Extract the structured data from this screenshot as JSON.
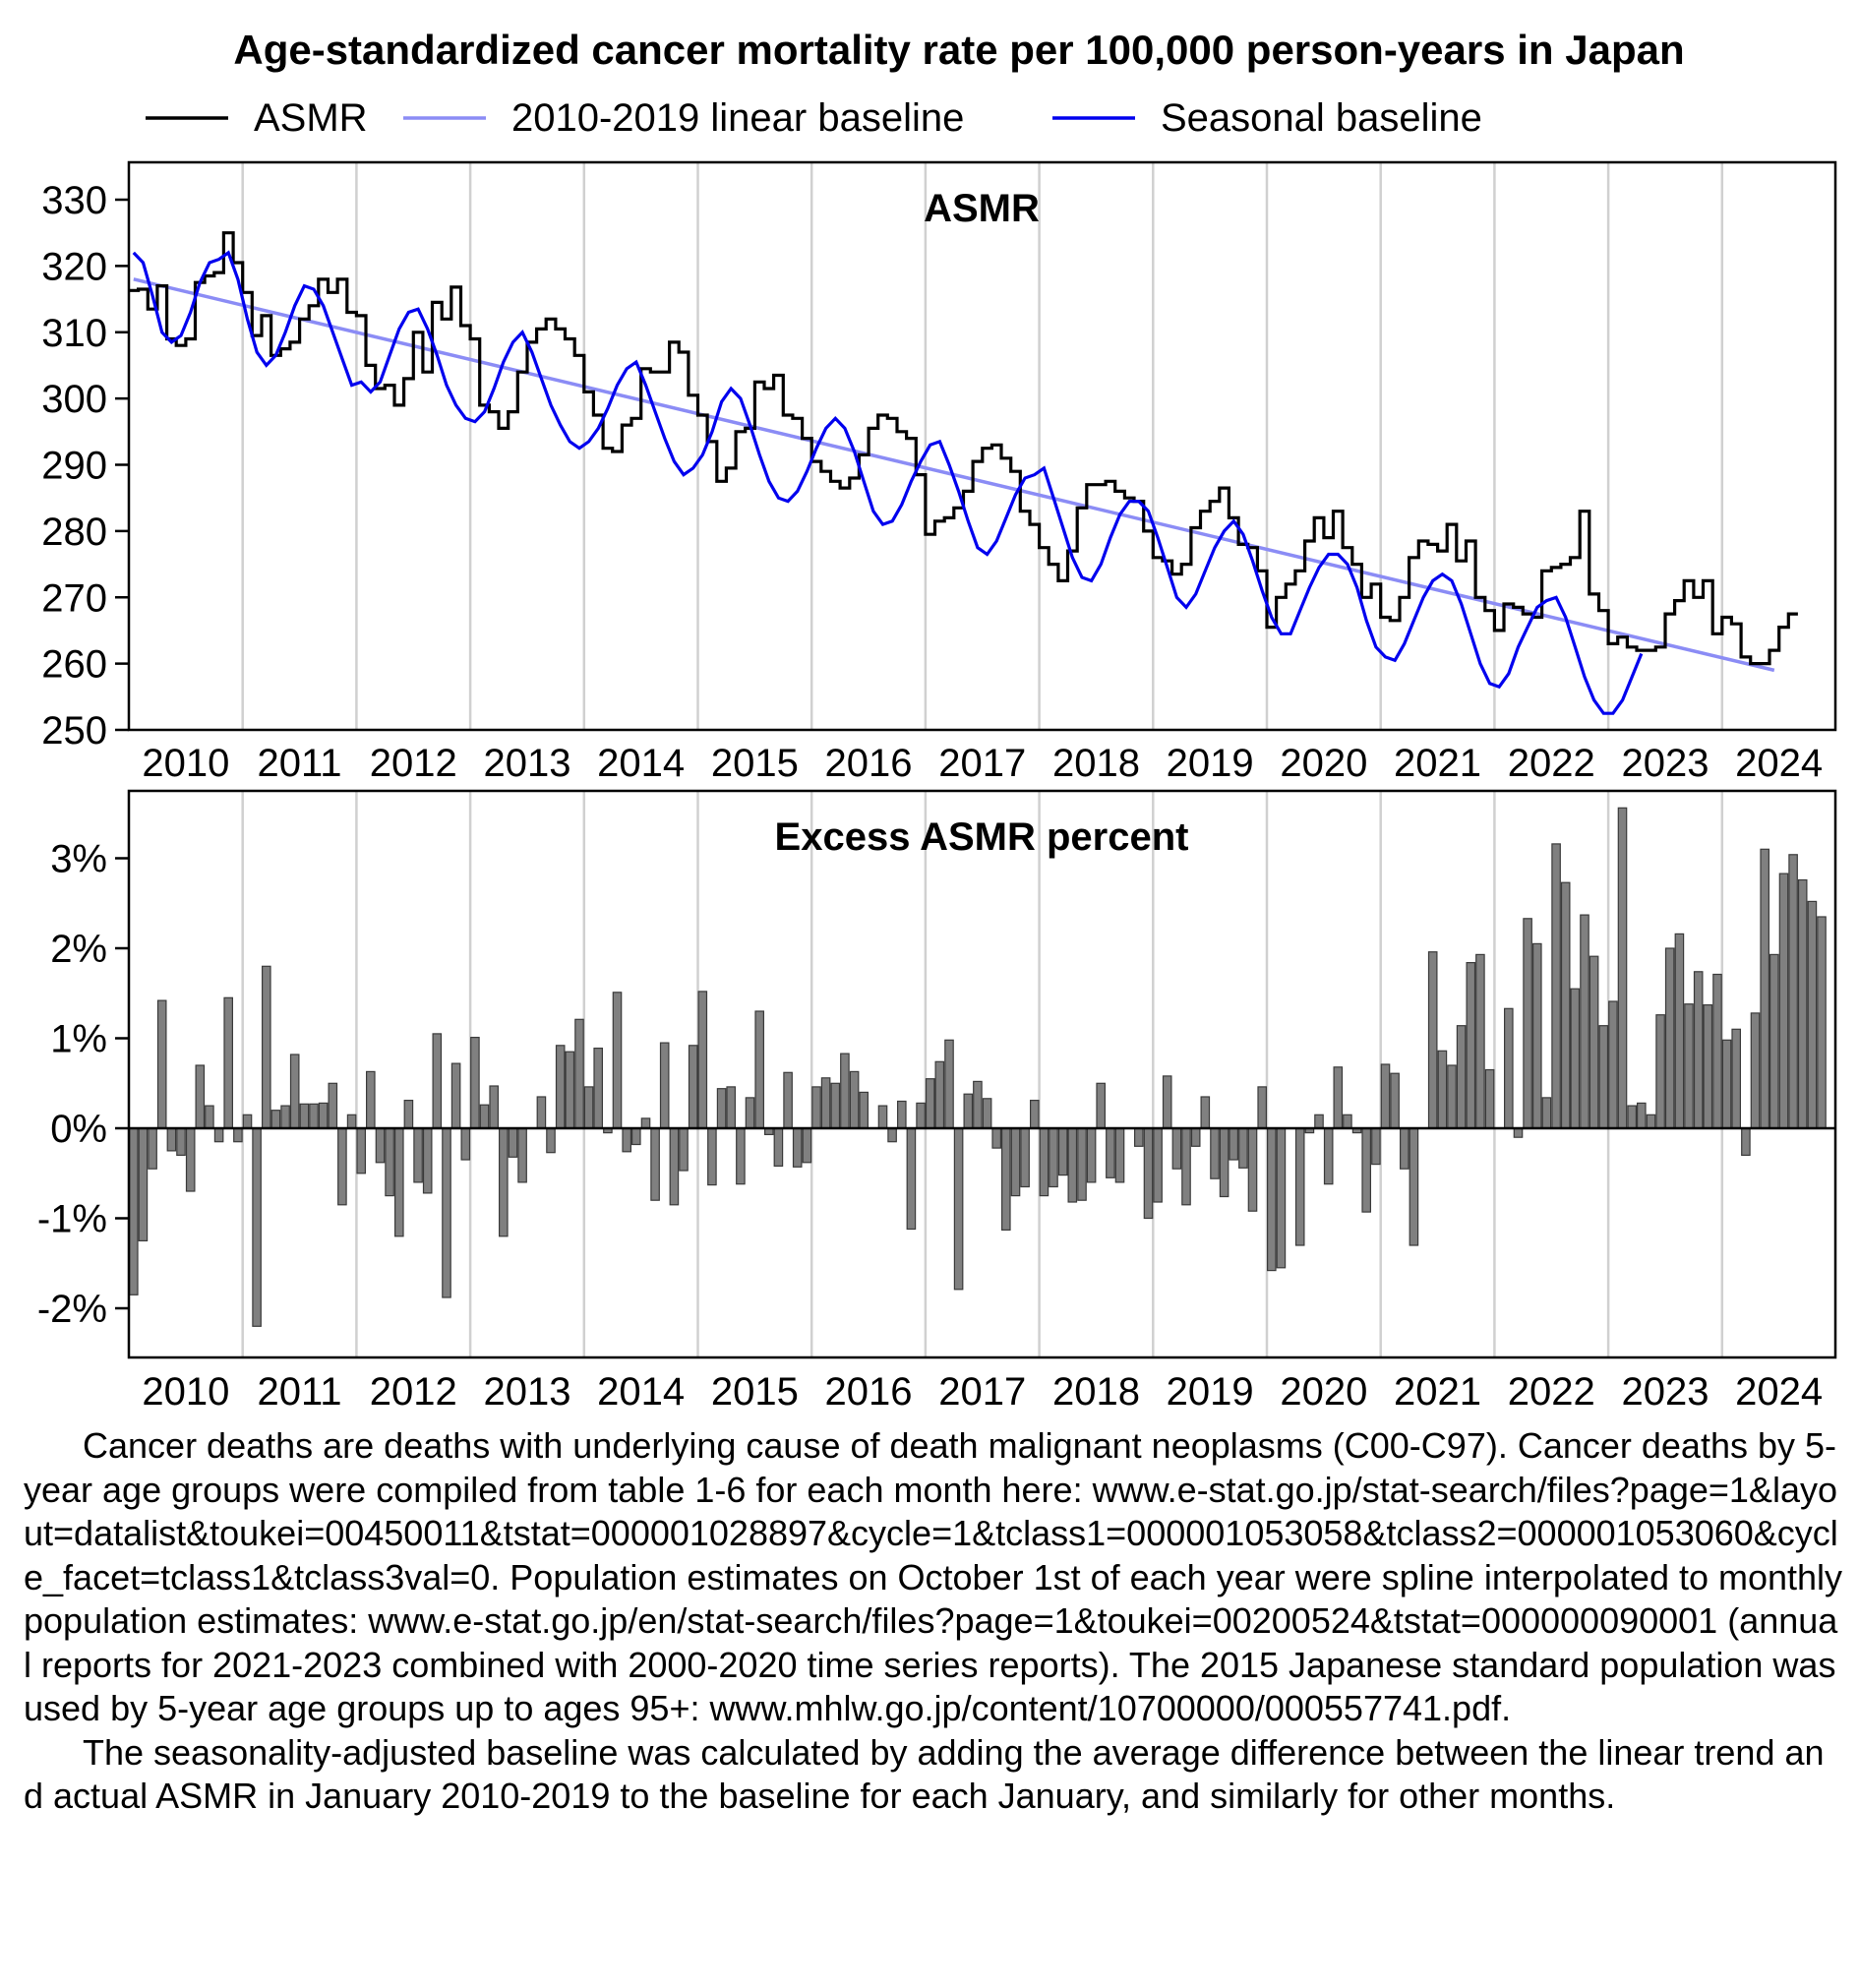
{
  "figure": {
    "title": "Age-standardized cancer mortality rate per 100,000 person-years in Japan",
    "legend": [
      {
        "name": "ASMR",
        "color": "#000000"
      },
      {
        "name": "2010-2019 linear baseline",
        "color": "#8b8cf5"
      },
      {
        "name": "Seasonal baseline",
        "color": "#0000ee"
      }
    ],
    "notes": [
      "Cancer deaths are deaths with underlying cause of death malignant neoplasms (C00-C97). Cancer deaths by 5-year age groups were compiled from table 1-6 for each month here: www.e-stat.go.jp/stat-search/files?page=1&layout=datalist&toukei=00450011&tstat=000001028897&cycle=1&tclass1=000001053058&tclass2=000001053060&cycle_facet=tclass1&tclass3val=0. Population estimates on October 1st of each year were spline interpolated to monthly population estimates: www.e-stat.go.jp/en/stat-search/files?page=1&toukei=00200524&tstat=000000090001 (annual reports for 2021-2023 combined with 2000-2020 time series reports). The 2015 Japanese standard population was used by 5-year age groups up to ages 95+: www.mhlw.go.jp/content/10700000/000557741.pdf.",
      "The seasonality-adjusted baseline was calculated by adding the average difference between the linear trend and actual ASMR in January 2010-2019 to the baseline for each January, and similarly for other months."
    ]
  },
  "chart_data": [
    {
      "type": "line",
      "title": "ASMR",
      "x_start": "2010-01",
      "x_end": "2024-06",
      "x_ticks": [
        "2010",
        "2011",
        "2012",
        "2013",
        "2014",
        "2015",
        "2016",
        "2017",
        "2018",
        "2019",
        "2020",
        "2021",
        "2022",
        "2023",
        "2024"
      ],
      "ylim": [
        250,
        335
      ],
      "y_ticks": [
        250,
        260,
        270,
        280,
        290,
        300,
        310,
        320,
        330
      ],
      "grid": "vertical lines at year starts",
      "series": [
        {
          "name": "ASMR",
          "style": "step",
          "color": "#000000",
          "values": [
            316.3,
            316.5,
            313.5,
            317.0,
            309.0,
            308.0,
            309.0,
            317.5,
            318.5,
            319.0,
            325.0,
            320.5,
            316.0,
            309.5,
            312.5,
            306.5,
            307.5,
            308.5,
            312.0,
            314.0,
            318.0,
            316.0,
            318.0,
            313.0,
            312.5,
            305.0,
            301.5,
            302.0,
            299.0,
            303.0,
            310.0,
            304.0,
            314.5,
            312.0,
            316.8,
            311.0,
            309.0,
            299.0,
            298.0,
            295.5,
            298.0,
            304.0,
            308.5,
            310.5,
            312.0,
            310.5,
            309.0,
            306.5,
            301.0,
            297.5,
            292.5,
            292.0,
            296.0,
            297.0,
            304.5,
            304.0,
            304.0,
            308.5,
            307.0,
            300.5,
            297.5,
            293.5,
            287.5,
            289.5,
            295.0,
            295.5,
            302.5,
            301.5,
            303.5,
            297.5,
            297.0,
            294.0,
            290.5,
            289.0,
            287.5,
            286.5,
            288.0,
            291.5,
            295.5,
            297.5,
            297.0,
            295.0,
            294.0,
            288.5,
            279.5,
            281.5,
            282.0,
            283.5,
            286.0,
            290.5,
            292.5,
            293.0,
            291.0,
            289.0,
            283.0,
            281.0,
            277.5,
            275.0,
            272.5,
            277.0,
            283.5,
            287.0,
            287.0,
            287.5,
            286.0,
            285.0,
            284.5,
            280.0,
            276.0,
            275.5,
            273.5,
            275.0,
            280.5,
            283.0,
            284.5,
            286.5,
            282.0,
            278.0,
            277.5,
            274.0,
            265.5,
            270.0,
            272.0,
            274.0,
            278.5,
            282.0,
            279.0,
            283.0,
            277.5,
            275.0,
            270.0,
            272.0,
            267.0,
            266.5,
            270.0,
            276.0,
            278.5,
            278.0,
            277.0,
            281.0,
            275.5,
            278.5,
            270.0,
            268.0,
            265.0,
            269.0,
            268.5,
            267.5,
            267.0,
            274.0,
            274.5,
            275.0,
            276.0,
            283.0,
            270.5,
            268.0,
            263.0,
            264.0,
            262.5,
            262.0,
            262.0,
            262.5,
            267.5,
            269.5,
            272.5,
            270.0,
            272.5,
            264.5,
            267.0,
            266.0,
            261.0,
            260.0,
            260.0,
            262.0,
            265.5,
            267.5
          ]
        },
        {
          "name": "2010-2019 linear baseline",
          "style": "line",
          "color": "#8b8cf5",
          "start_value": 318.0,
          "end_value": 259.0
        },
        {
          "name": "Seasonal baseline",
          "style": "line",
          "color": "#0000ee",
          "values": [
            322.0,
            320.5,
            315.5,
            310.0,
            308.5,
            309.5,
            313.0,
            317.5,
            320.5,
            321.0,
            322.0,
            318.0,
            312.0,
            307.0,
            305.0,
            306.5,
            310.0,
            314.0,
            317.0,
            316.5,
            314.0,
            310.0,
            306.0,
            302.0,
            302.5,
            301.0,
            302.5,
            306.5,
            310.5,
            313.0,
            313.5,
            310.5,
            306.5,
            302.0,
            299.0,
            297.0,
            296.5,
            298.0,
            301.5,
            305.5,
            308.5,
            310.0,
            307.0,
            303.0,
            299.0,
            296.0,
            293.5,
            292.5,
            293.5,
            295.5,
            298.5,
            302.0,
            304.5,
            305.5,
            302.0,
            298.0,
            294.0,
            290.5,
            288.5,
            289.5,
            291.5,
            295.0,
            299.5,
            301.5,
            300.0,
            296.0,
            291.5,
            287.5,
            285.0,
            284.5,
            286.0,
            289.0,
            292.5,
            295.5,
            297.0,
            295.5,
            292.0,
            287.5,
            283.0,
            281.0,
            281.5,
            284.0,
            287.5,
            290.5,
            293.0,
            293.5,
            290.0,
            286.0,
            281.5,
            277.5,
            276.5,
            278.5,
            282.0,
            285.5,
            288.0,
            288.5,
            289.5,
            285.0,
            280.5,
            276.0,
            273.0,
            272.5,
            275.0,
            279.0,
            282.5,
            284.5,
            284.5,
            283.0,
            279.0,
            274.5,
            270.0,
            268.5,
            270.5,
            274.0,
            277.5,
            280.0,
            281.5,
            279.5,
            275.5,
            271.0,
            267.0,
            264.5,
            264.5,
            268.0,
            271.5,
            274.5,
            276.5,
            276.5,
            275.0,
            271.5,
            266.5,
            262.5,
            261.0,
            260.5,
            263.0,
            266.5,
            270.0,
            272.5,
            273.5,
            272.5,
            269.0,
            264.5,
            260.0,
            257.0,
            256.5,
            258.5,
            262.5,
            265.5,
            268.5,
            269.5,
            270.0,
            267.0,
            262.5,
            258.0,
            254.5,
            252.5,
            252.5,
            254.5,
            258.0,
            261.5
          ]
        }
      ]
    },
    {
      "type": "bar",
      "title": "Excess ASMR percent",
      "x_start": "2010-01",
      "x_end": "2024-06",
      "x_ticks": [
        "2010",
        "2011",
        "2012",
        "2013",
        "2014",
        "2015",
        "2016",
        "2017",
        "2018",
        "2019",
        "2020",
        "2021",
        "2022",
        "2023",
        "2024"
      ],
      "ylim": [
        -2.5,
        3.75
      ],
      "y_ticks": [
        "-2%",
        "-1%",
        "0%",
        "1%",
        "2%",
        "3%"
      ],
      "y_tick_values": [
        -2,
        -1,
        0,
        1,
        2,
        3
      ],
      "bar_color": "#808080",
      "series": [
        {
          "name": "Excess ASMR percent",
          "values": [
            -1.85,
            -1.25,
            -0.45,
            1.42,
            -0.25,
            -0.3,
            -0.7,
            0.7,
            0.25,
            -0.15,
            1.45,
            -0.15,
            0.15,
            -2.2,
            1.8,
            0.2,
            0.25,
            0.82,
            0.27,
            0.27,
            0.28,
            0.5,
            -0.85,
            0.15,
            -0.5,
            0.63,
            -0.38,
            -0.75,
            -1.2,
            0.31,
            -0.6,
            -0.72,
            1.05,
            -1.88,
            0.72,
            -0.35,
            1.01,
            0.26,
            0.47,
            -1.2,
            -0.32,
            -0.6,
            0.0,
            0.35,
            -0.27,
            0.92,
            0.85,
            1.21,
            0.46,
            0.89,
            -0.05,
            1.51,
            -0.26,
            -0.18,
            0.11,
            -0.8,
            0.95,
            -0.85,
            -0.47,
            0.92,
            1.52,
            -0.63,
            0.44,
            0.46,
            -0.62,
            0.34,
            1.3,
            -0.07,
            -0.42,
            0.62,
            -0.43,
            -0.38,
            0.46,
            0.56,
            0.5,
            0.83,
            0.63,
            0.4,
            0.0,
            0.25,
            -0.15,
            0.3,
            -1.12,
            0.28,
            0.55,
            0.74,
            0.98,
            -1.79,
            0.38,
            0.52,
            0.33,
            -0.22,
            -1.13,
            -0.75,
            -0.65,
            0.31,
            -0.75,
            -0.65,
            -0.52,
            -0.82,
            -0.8,
            -0.6,
            0.5,
            -0.55,
            -0.6,
            0.0,
            -0.2,
            -1.0,
            -0.82,
            0.58,
            -0.45,
            -0.85,
            -0.2,
            0.35,
            -0.56,
            -0.76,
            -0.35,
            -0.44,
            -0.92,
            0.46,
            -1.58,
            -1.55,
            0.0,
            -1.3,
            -0.05,
            0.15,
            -0.62,
            0.68,
            0.15,
            -0.05,
            -0.93,
            -0.4,
            0.71,
            0.61,
            -0.45,
            -1.3,
            0.0,
            1.96,
            0.86,
            0.7,
            1.14,
            1.84,
            1.93,
            0.65,
            0.0,
            1.33,
            -0.1,
            2.33,
            2.05,
            0.34,
            3.16,
            2.73,
            1.55,
            2.37,
            1.91,
            1.14,
            1.41,
            3.56,
            0.25,
            0.28,
            0.15,
            1.26,
            2.0,
            2.16,
            1.38,
            1.74,
            1.37,
            1.71,
            0.98,
            1.1,
            -0.3,
            1.28,
            3.1,
            1.93,
            2.83,
            3.04,
            2.76,
            2.52,
            2.35
          ]
        }
      ]
    }
  ]
}
